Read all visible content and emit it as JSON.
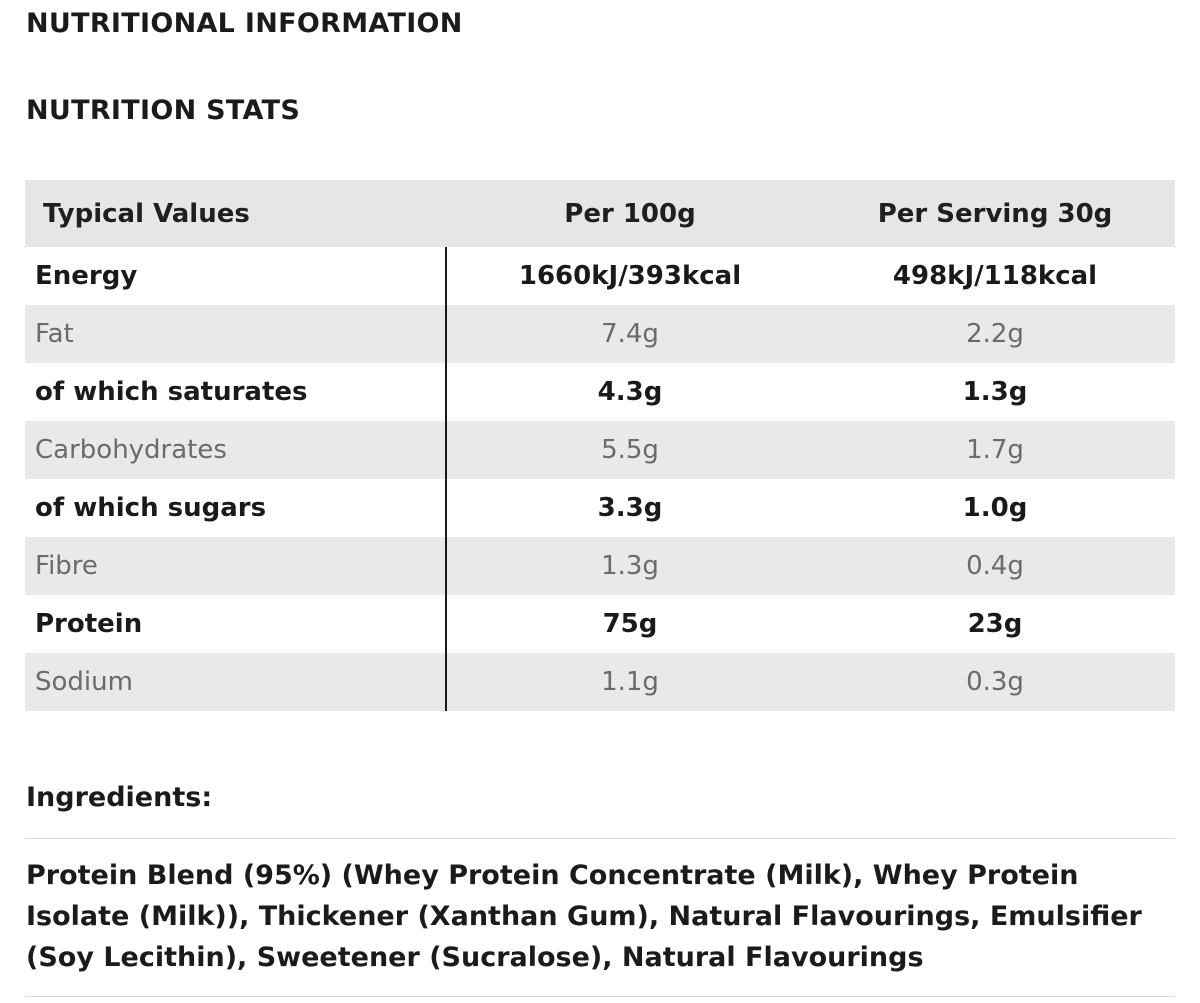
{
  "headings": {
    "nutritional_information": "NUTRITIONAL INFORMATION",
    "nutrition_stats": "NUTRITION STATS"
  },
  "table": {
    "columns": [
      "Typical Values",
      "Per 100g",
      "Per Serving 30g"
    ],
    "rows": [
      {
        "label": "Energy",
        "per100g": "1660kJ/393kcal",
        "perServing": "498kJ/118kcal"
      },
      {
        "label": "Fat",
        "per100g": "7.4g",
        "perServing": "2.2g"
      },
      {
        "label": "of which saturates",
        "per100g": "4.3g",
        "perServing": "1.3g"
      },
      {
        "label": "Carbohydrates",
        "per100g": "5.5g",
        "perServing": "1.7g"
      },
      {
        "label": "of which sugars",
        "per100g": "3.3g",
        "perServing": "1.0g"
      },
      {
        "label": "Fibre",
        "per100g": "1.3g",
        "perServing": "0.4g"
      },
      {
        "label": "Protein",
        "per100g": "75g",
        "perServing": "23g"
      },
      {
        "label": "Sodium",
        "per100g": "1.1g",
        "perServing": "0.3g"
      }
    ]
  },
  "ingredients": {
    "title": "Ingredients:",
    "text": "Protein Blend (95%) (Whey Protein Concentrate (Milk), Whey Protein Isolate (Milk)), Thickener (Xanthan Gum), Natural Flavourings, Emulsifier (Soy Lecithin), Sweetener (Sucralose), Natural Flavourings"
  }
}
